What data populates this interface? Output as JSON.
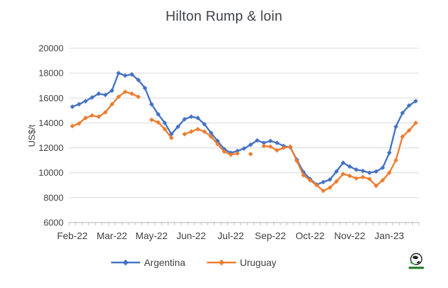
{
  "title": "Hilton Rump & loin",
  "colors": {
    "argentina": "#4472C4",
    "uruguay": "#ED7D31",
    "gridline": "#D9D9D9",
    "axis": "#BFBFBF",
    "text": "#404040",
    "logo_green": "#2e7d32"
  },
  "chart_data": {
    "type": "line",
    "title": "Hilton Rump & loin",
    "xlabel": "",
    "ylabel": "US$/t",
    "ylim": [
      6000,
      20000
    ],
    "ytick_step": 2000,
    "yticks": [
      20000,
      18000,
      16000,
      14000,
      12000,
      10000,
      8000,
      6000
    ],
    "grid": true,
    "legend_position": "bottom",
    "x_unit": "weekly points, Feb 2022 - Feb 2023",
    "n_points": 53,
    "x_tick_labels": [
      "Feb-22",
      "Mar-22",
      "May-22",
      "Jun-22",
      "Jul-22",
      "Sep-22",
      "Oct-22",
      "Nov-22",
      "Jan-23"
    ],
    "x_tick_indices": [
      0,
      6,
      12,
      18,
      24,
      30,
      36,
      42,
      48
    ],
    "series": [
      {
        "name": "Argentina",
        "color": "#4472C4",
        "marker": "diamond",
        "values": [
          15300,
          15500,
          15750,
          16050,
          16350,
          16250,
          16600,
          18000,
          17800,
          17900,
          17450,
          16800,
          15500,
          14700,
          14000,
          13100,
          13700,
          14300,
          14500,
          14400,
          13900,
          13200,
          12550,
          11900,
          11600,
          11750,
          11950,
          12250,
          12600,
          12400,
          12550,
          12400,
          12150,
          12050,
          11050,
          10050,
          9500,
          9050,
          9250,
          9450,
          10100,
          10800,
          10500,
          10250,
          10150,
          10000,
          10100,
          10400,
          11600,
          13700,
          14800,
          15400,
          15750
        ]
      },
      {
        "name": "Uruguay",
        "color": "#ED7D31",
        "marker": "diamond",
        "values": [
          13750,
          13950,
          14400,
          14600,
          14500,
          14850,
          15500,
          16100,
          16500,
          16350,
          16100,
          null,
          14250,
          14050,
          13500,
          12800,
          null,
          13100,
          13300,
          13500,
          13300,
          12900,
          12300,
          11700,
          11450,
          11550,
          null,
          11500,
          null,
          12150,
          12100,
          11800,
          12000,
          12100,
          10950,
          9800,
          9400,
          9000,
          8550,
          8800,
          9300,
          9900,
          9750,
          9550,
          9650,
          9500,
          8950,
          9400,
          10000,
          11000,
          12900,
          13400,
          14000
        ]
      }
    ]
  }
}
